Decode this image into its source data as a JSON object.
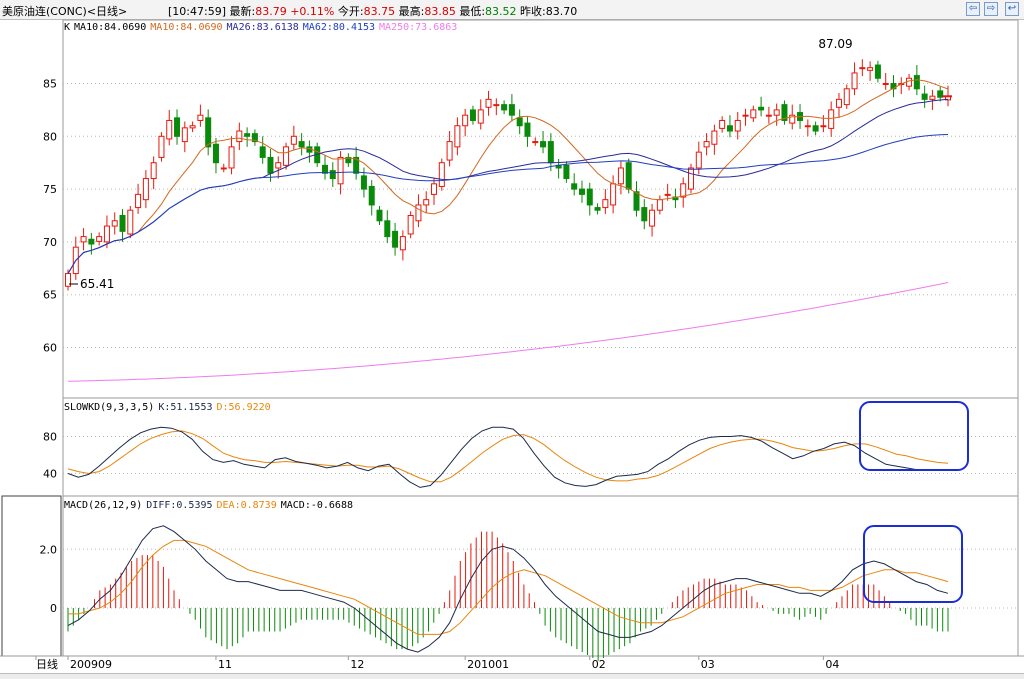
{
  "header": {
    "name": "美原油连(CONC)<日线>",
    "time": "[10:47:59]",
    "latest_label": "最新:",
    "latest": "83.79",
    "change": "+0.11%",
    "open_label": "今开:",
    "open": "83.75",
    "high_label": "最高:",
    "high": "83.85",
    "low_label": "最低:",
    "low": "83.52",
    "prev_label": "昨收:",
    "prev": "83.70"
  },
  "nav": {
    "prev_icon": "⇦",
    "next_icon": "⇨",
    "back_icon": "↩"
  },
  "colors": {
    "up": "#e8180c",
    "down": "#0a8a0a",
    "ma10": "#d2691e",
    "ma26": "#2a2a9a",
    "ma62": "#1f3fbf",
    "ma250": "#ee7cee",
    "k": "#1c2a4a",
    "d": "#e8860c",
    "grid": "#b8b8b8",
    "frame": "#9a9a9a",
    "highlight": "#1a2ed8"
  },
  "legends": {
    "kline": [
      {
        "text": "K",
        "color": "#000000"
      },
      {
        "text": "MA10:84.0690",
        "color": "#000000"
      },
      {
        "text": "MA10:84.0690",
        "color": "#d2691e"
      },
      {
        "text": "MA26:83.6138",
        "color": "#2a2a9a"
      },
      {
        "text": "MA62:80.4153",
        "color": "#1f3fbf"
      },
      {
        "text": "MA250:73.6863",
        "color": "#ee7cee"
      }
    ],
    "kd": [
      {
        "text": "SLOWKD(9,3,3,5)",
        "color": "#000000"
      },
      {
        "text": "K:51.1553",
        "color": "#1c2a4a"
      },
      {
        "text": "D:56.9220",
        "color": "#e8860c"
      }
    ],
    "macd": [
      {
        "text": "MACD(26,12,9)",
        "color": "#000000"
      },
      {
        "text": "DIFF:0.5395",
        "color": "#1c2a4a"
      },
      {
        "text": "DEA:0.8739",
        "color": "#e8860c"
      },
      {
        "text": "MACD:-0.6688",
        "color": "#000000"
      }
    ]
  },
  "chart_data": [
    {
      "type": "candlestick",
      "panel": "price",
      "y_ticks": [
        "85",
        "80",
        "75",
        "70",
        "65",
        "60"
      ],
      "ylim": [
        55.5,
        89.5
      ],
      "annotations": [
        {
          "text": "87.09",
          "index": 102
        },
        {
          "text": "65.41",
          "index": 0
        }
      ],
      "x_labels": [
        {
          "text": "日线",
          "index": -3
        },
        {
          "text": "200909",
          "index": 0
        },
        {
          "text": "11",
          "index": 19
        },
        {
          "text": "12",
          "index": 36
        },
        {
          "text": "201001",
          "index": 51
        },
        {
          "text": "02",
          "index": 67
        },
        {
          "text": "03",
          "index": 81
        },
        {
          "text": "04",
          "index": 97
        }
      ],
      "closes": [
        67,
        69.5,
        70.5,
        69.8,
        70.5,
        71.5,
        72,
        71,
        73,
        74.5,
        76,
        77.5,
        80,
        81.5,
        80,
        80.8,
        81,
        82,
        79,
        77.5,
        77,
        79,
        80.5,
        80,
        79.5,
        78,
        76.5,
        77.5,
        79,
        80,
        79,
        78.5,
        77.5,
        76.5,
        76,
        78,
        77.5,
        76.5,
        75,
        73.5,
        72,
        70.5,
        69.5,
        70.5,
        72.5,
        73.5,
        74,
        75.5,
        77.5,
        79.5,
        81,
        82,
        81.5,
        82.5,
        83.5,
        83,
        82.5,
        82,
        81,
        80,
        79.5,
        79,
        77.5,
        77,
        76,
        75,
        74.5,
        73.5,
        73,
        74,
        75.5,
        77,
        75,
        73,
        72,
        73,
        74,
        74.5,
        74,
        75.5,
        77,
        78.5,
        79.5,
        80.5,
        81.5,
        80.5,
        81.5,
        82,
        82.5,
        82.5,
        82,
        82.5,
        81.5,
        82,
        81.5,
        81,
        80.5,
        81,
        82.5,
        83.5,
        84.5,
        86,
        86.5,
        86.5,
        85.5,
        85,
        84.5,
        85,
        85.5,
        84.5,
        83.5,
        83.8,
        83.7,
        83.79
      ]
    },
    {
      "type": "line",
      "panel": "slowkd",
      "y_ticks": [
        "80",
        "40"
      ],
      "ylim": [
        20,
        100
      ],
      "series": [
        {
          "name": "K",
          "values": [
            40,
            36,
            39,
            48,
            58,
            68,
            77,
            84,
            88,
            90,
            89,
            85,
            77,
            64,
            55,
            52,
            54,
            50,
            48,
            46,
            55,
            57,
            53,
            51,
            49,
            46,
            48,
            52,
            46,
            43,
            48,
            50,
            40,
            31,
            25,
            27,
            38,
            52,
            66,
            78,
            86,
            90,
            90,
            88,
            78,
            62,
            48,
            36,
            30,
            27,
            26,
            28,
            33,
            37,
            38,
            39,
            42,
            50,
            56,
            64,
            71,
            76,
            79,
            80,
            80,
            81,
            79,
            75,
            68,
            62,
            56,
            59,
            64,
            67,
            72,
            74,
            70,
            62,
            56,
            50,
            48,
            46,
            44,
            44,
            44,
            44
          ]
        },
        {
          "name": "D",
          "values": [
            45,
            42,
            40,
            42,
            48,
            56,
            64,
            72,
            78,
            82,
            85,
            86,
            83,
            78,
            70,
            62,
            58,
            55,
            54,
            52,
            52,
            53,
            52,
            51,
            50,
            49,
            48,
            49,
            49,
            47,
            47,
            48,
            45,
            40,
            35,
            31,
            31,
            36,
            44,
            53,
            62,
            70,
            77,
            81,
            82,
            78,
            71,
            62,
            54,
            47,
            41,
            36,
            33,
            32,
            32,
            34,
            35,
            38,
            43,
            49,
            55,
            61,
            67,
            71,
            74,
            76,
            77,
            77,
            75,
            72,
            68,
            66,
            64,
            65,
            67,
            70,
            72,
            72,
            69,
            65,
            61,
            59,
            56,
            54,
            52,
            51
          ]
        }
      ]
    },
    {
      "type": "bar+line",
      "panel": "macd",
      "y_ticks": [
        "2.0",
        "0"
      ],
      "ylim": [
        -1.6,
        3.2
      ],
      "series": [
        {
          "name": "DIFF",
          "values": [
            -0.6,
            -0.4,
            -0.1,
            0.3,
            0.6,
            1.1,
            1.7,
            2.3,
            2.7,
            2.8,
            2.6,
            2.3,
            2.0,
            1.6,
            1.3,
            1.0,
            0.9,
            0.9,
            0.8,
            0.7,
            0.6,
            0.6,
            0.6,
            0.5,
            0.4,
            0.3,
            0.2,
            0.0,
            -0.3,
            -0.6,
            -0.9,
            -1.2,
            -1.4,
            -1.5,
            -1.3,
            -1.0,
            -0.5,
            0.3,
            1.0,
            1.6,
            2.0,
            2.1,
            2.0,
            1.7,
            1.3,
            0.8,
            0.4,
            0.1,
            -0.2,
            -0.5,
            -0.8,
            -0.9,
            -1.0,
            -1.0,
            -0.9,
            -0.8,
            -0.6,
            -0.3,
            0.0,
            0.3,
            0.6,
            0.8,
            0.9,
            1.0,
            1.0,
            0.9,
            0.8,
            0.7,
            0.6,
            0.5,
            0.5,
            0.4,
            0.6,
            0.9,
            1.3,
            1.5,
            1.6,
            1.5,
            1.3,
            1.1,
            0.9,
            0.8,
            0.6,
            0.5
          ]
        },
        {
          "name": "DEA",
          "values": [
            -0.2,
            -0.2,
            -0.1,
            0.0,
            0.2,
            0.5,
            0.9,
            1.4,
            1.8,
            2.1,
            2.3,
            2.3,
            2.2,
            2.1,
            1.9,
            1.7,
            1.5,
            1.3,
            1.2,
            1.1,
            1.0,
            0.9,
            0.8,
            0.7,
            0.6,
            0.5,
            0.4,
            0.3,
            0.1,
            -0.1,
            -0.3,
            -0.5,
            -0.7,
            -0.9,
            -0.9,
            -0.9,
            -0.8,
            -0.5,
            -0.1,
            0.3,
            0.7,
            1.0,
            1.2,
            1.3,
            1.2,
            1.1,
            0.9,
            0.7,
            0.5,
            0.3,
            0.1,
            -0.1,
            -0.3,
            -0.4,
            -0.5,
            -0.5,
            -0.5,
            -0.4,
            -0.3,
            -0.1,
            0.1,
            0.3,
            0.5,
            0.6,
            0.7,
            0.8,
            0.8,
            0.8,
            0.7,
            0.7,
            0.6,
            0.6,
            0.6,
            0.7,
            0.9,
            1.1,
            1.2,
            1.3,
            1.3,
            1.2,
            1.2,
            1.1,
            1.0,
            0.9
          ]
        }
      ]
    }
  ]
}
